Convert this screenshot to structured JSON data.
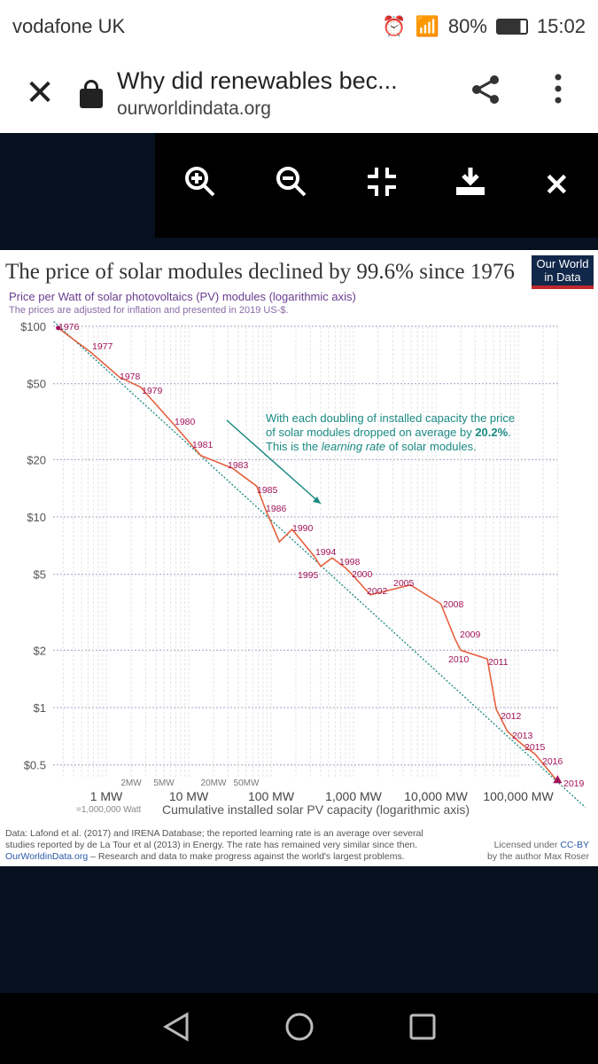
{
  "status_bar": {
    "carrier": "vodafone UK",
    "battery": "80%",
    "time": "15:02",
    "icons": [
      "alarm-icon",
      "wifi-icon",
      "signal-icon",
      "battery-icon"
    ]
  },
  "browser": {
    "title": "Why did renewables bec...",
    "url": "ourworldindata.org"
  },
  "viewer_toolbar": {
    "buttons": [
      "zoom-in",
      "zoom-out",
      "fit-screen",
      "download",
      "close"
    ]
  },
  "chart": {
    "title": "The price of solar modules declined by 99.6% since 1976",
    "logo": "Our World in Data",
    "subtitle": "Price per Watt of solar photovoltaics (PV) modules (logarithmic axis)",
    "note": "The prices are adjusted for inflation and presented in 2019 US-$.",
    "annotation_1": "With each doubling of installed capacity the price",
    "annotation_2a": "of solar modules dropped on average by ",
    "annotation_2b": "20.2%",
    "annotation_3a": "This is the ",
    "annotation_3b": "learning rate",
    "annotation_3c": " of solar modules.",
    "xlabel": "Cumulative installed solar PV capacity (logarithmic axis)",
    "x_sublabel": "=1,000,000 Watt",
    "source_1": "Data: Lafond et al. (2017) and IRENA Database; the reported learning rate is an average over several",
    "source_2": "studies reported by de La Tour et al (2013) in Energy. The rate has remained very similar since then.",
    "source_3a": "OurWorldinData.org",
    "source_3b": " – Research and data to make progress against the world's largest problems.",
    "license_1a": "Licensed under ",
    "license_1b": "CC-BY",
    "license_2": "by the author Max Roser"
  },
  "chart_data": {
    "type": "line",
    "xscale": "log",
    "yscale": "log",
    "y_ticks": [
      {
        "v": 100,
        "label": "$100"
      },
      {
        "v": 50,
        "label": "$50"
      },
      {
        "v": 20,
        "label": "$20"
      },
      {
        "v": 10,
        "label": "$10"
      },
      {
        "v": 5,
        "label": "$5"
      },
      {
        "v": 2,
        "label": "$2"
      },
      {
        "v": 1,
        "label": "$1"
      },
      {
        "v": 0.5,
        "label": "$0.5"
      }
    ],
    "x_ticks": [
      {
        "v": 1,
        "label": "1 MW"
      },
      {
        "v": 10,
        "label": "10 MW"
      },
      {
        "v": 100,
        "label": "100 MW"
      },
      {
        "v": 1000,
        "label": "1,000 MW"
      },
      {
        "v": 10000,
        "label": "10,000 MW"
      },
      {
        "v": 100000,
        "label": "100,000 MW"
      }
    ],
    "x_minor_ticks": [
      {
        "v": 2,
        "label": "2MW"
      },
      {
        "v": 5,
        "label": "5MW"
      },
      {
        "v": 20,
        "label": "20MW"
      },
      {
        "v": 50,
        "label": "50MW"
      }
    ],
    "points": [
      {
        "year": "1976",
        "x": 0.26,
        "y": 98
      },
      {
        "year": "1977",
        "x": 0.65,
        "y": 73
      },
      {
        "year": "1978",
        "x": 1.45,
        "y": 54
      },
      {
        "year": "1979",
        "x": 2.6,
        "y": 48
      },
      {
        "year": "1980",
        "x": 6.4,
        "y": 31
      },
      {
        "year": "1981",
        "x": 14,
        "y": 21
      },
      {
        "year": "1983",
        "x": 34,
        "y": 18
      },
      {
        "year": "1985",
        "x": 67,
        "y": 14.5
      },
      {
        "year": "1986",
        "x": 86,
        "y": 10.9
      },
      {
        "year": "",
        "x": 126,
        "y": 7.4
      },
      {
        "year": "1990",
        "x": 180,
        "y": 8.6
      },
      {
        "year": "1994",
        "x": 336,
        "y": 6.2
      },
      {
        "year": "1995",
        "x": 400,
        "y": 5.5
      },
      {
        "year": "",
        "x": 550,
        "y": 6.1
      },
      {
        "year": "1998",
        "x": 800,
        "y": 5.4
      },
      {
        "year": "2000",
        "x": 1000,
        "y": 4.9
      },
      {
        "year": "2002",
        "x": 1600,
        "y": 3.9
      },
      {
        "year": "2005",
        "x": 4900,
        "y": 4.4
      },
      {
        "year": "2008",
        "x": 11500,
        "y": 3.5
      },
      {
        "year": "2009",
        "x": 17000,
        "y": 2.3
      },
      {
        "year": "2010",
        "x": 20000,
        "y": 2.0
      },
      {
        "year": "2011",
        "x": 42000,
        "y": 1.8
      },
      {
        "year": "2012",
        "x": 54000,
        "y": 0.98
      },
      {
        "year": "2013",
        "x": 74000,
        "y": 0.75
      },
      {
        "year": "2015",
        "x": 112000,
        "y": 0.64
      },
      {
        "year": "2016",
        "x": 160000,
        "y": 0.57
      },
      {
        "year": "2019",
        "x": 300000,
        "y": 0.41
      }
    ],
    "learning_curve": [
      {
        "x": 0.23,
        "y": 106
      },
      {
        "x": 650000,
        "y": 0.3
      }
    ],
    "colors": {
      "series": "#e5613f",
      "labels": "#a2135a",
      "trend": "#1a8a83",
      "subtitle": "#6a3d8f"
    }
  }
}
